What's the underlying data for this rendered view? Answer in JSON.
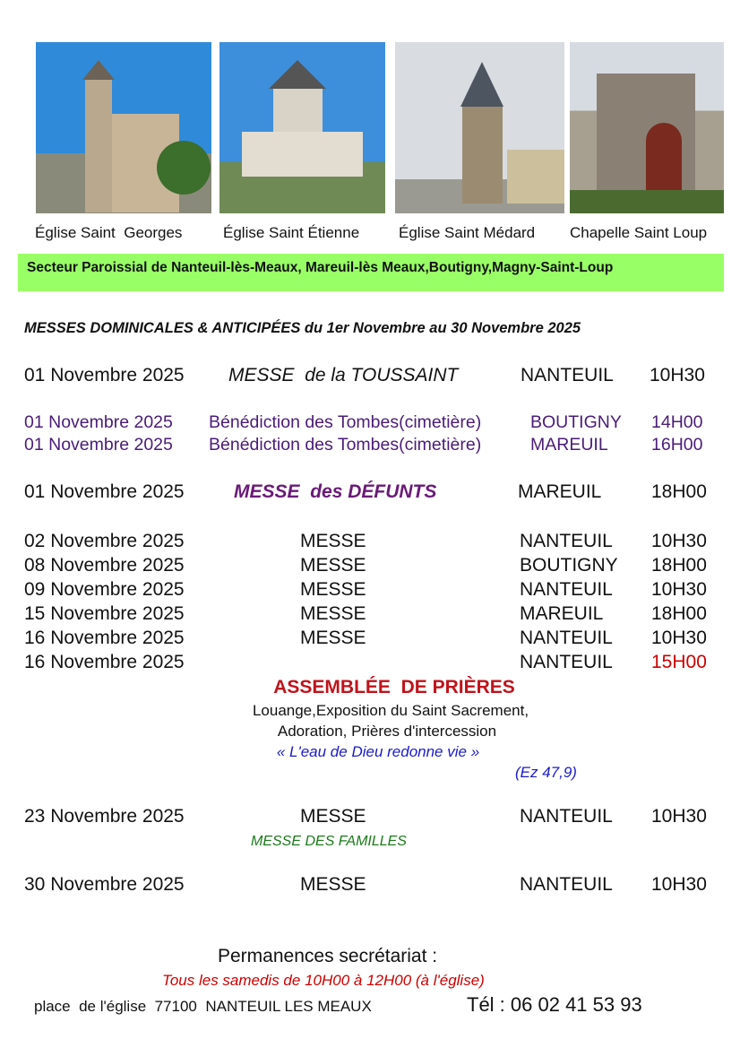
{
  "photos": [
    {
      "caption": "Église Saint  Georges",
      "sky": "#2f8bd9"
    },
    {
      "caption": "Église Saint Étienne",
      "sky": "#3d8fdc"
    },
    {
      "caption": "Église Saint Médard",
      "sky": "#d9dce0"
    },
    {
      "caption": "Chapelle Saint Loup",
      "sky": "#d6dbe2"
    }
  ],
  "banner": {
    "text": "Secteur Paroissial de Nanteuil-lès-Meaux, Mareuil-lès Meaux,Boutigny,Magny-Saint-Loup",
    "color": "#99ff66"
  },
  "heading": "MESSES DOMINICALES & ANTICIPÉES du 1er Novembre au 30 Novembre 2025",
  "toussaint": {
    "date": "01 Novembre 2025",
    "event": "MESSE  de la TOUSSAINT",
    "place": "NANTEUIL",
    "time": "10H30"
  },
  "benedictions": [
    {
      "date": "01 Novembre 2025",
      "event": "Bénédiction des Tombes(cimetière)",
      "place": "BOUTIGNY",
      "time": "14H00"
    },
    {
      "date": "01 Novembre 2025",
      "event": "Bénédiction des Tombes(cimetière)",
      "place": "MAREUIL",
      "time": "16H00"
    }
  ],
  "defunts": {
    "date": "01 Novembre 2025",
    "event": "MESSE  des DÉFUNTS",
    "place": "MAREUIL",
    "time": "18H00"
  },
  "masses": [
    {
      "date": "02 Novembre 2025",
      "event": "MESSE",
      "place": "NANTEUIL",
      "time": "10H30"
    },
    {
      "date": "08 Novembre 2025",
      "event": "MESSE",
      "place": "BOUTIGNY",
      "time": "18H00"
    },
    {
      "date": "09 Novembre 2025",
      "event": "MESSE",
      "place": "NANTEUIL",
      "time": "10H30"
    },
    {
      "date": "15 Novembre 2025",
      "event": "MESSE",
      "place": "MAREUIL",
      "time": "18H00"
    },
    {
      "date": "16 Novembre 2025",
      "event": "MESSE",
      "place": "NANTEUIL",
      "time": "10H30"
    }
  ],
  "assembly": {
    "date": "16 Novembre 2025",
    "place": "NANTEUIL",
    "time": "15H00",
    "title": "ASSEMBLÉE  DE PRIÈRES",
    "line1": "Louange,Exposition du Saint Sacrement,",
    "line2": "Adoration, Prières d'intercession",
    "quote": "« L'eau de Dieu redonne vie »",
    "ref": "(Ez 47,9)"
  },
  "familles": {
    "date": "23 Novembre 2025",
    "event": "MESSE",
    "place": "NANTEUIL",
    "time": "10H30",
    "note": "MESSE DES FAMILLES"
  },
  "last": {
    "date": "30 Novembre 2025",
    "event": "MESSE",
    "place": "NANTEUIL",
    "time": "10H30"
  },
  "footer": {
    "title": "Permanences secrétariat :",
    "hours": "Tous les samedis de 10H00 à 12H00 (à l'église)",
    "address": "place  de l'église  77100  NANTEUIL LES MEAUX",
    "phone": "Tél : 06 02 41 53 93"
  }
}
